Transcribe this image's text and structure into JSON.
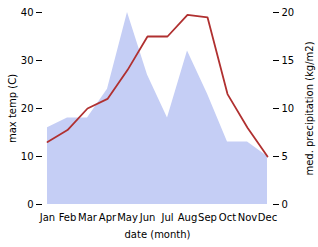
{
  "chart_data": {
    "type": "line",
    "xlabel": "date (month)",
    "ylabel": "max temp (C)",
    "y2label": "med. precipitation (kg/m2)",
    "categories": [
      "Jan",
      "Feb",
      "Mar",
      "Apr",
      "May",
      "Jun",
      "Jul",
      "Aug",
      "Sep",
      "Oct",
      "Nov",
      "Dec"
    ],
    "series": [
      {
        "type": "area",
        "axis": "y2",
        "color": "#c5cef5",
        "values": [
          8,
          9,
          9,
          12,
          20,
          13.5,
          9,
          16,
          11.5,
          6.5,
          6.5,
          5
        ]
      },
      {
        "type": "line",
        "color": "#b03030",
        "values": [
          13,
          15.5,
          20,
          22,
          28,
          35,
          35,
          39.5,
          39,
          23,
          16,
          10
        ]
      }
    ],
    "ylim": [
      0,
      40
    ],
    "yticks": [
      0,
      10,
      20,
      30,
      40
    ],
    "y2lim": [
      0,
      20
    ],
    "y2ticks": [
      0,
      5,
      10,
      15,
      20
    ],
    "grid": false
  }
}
